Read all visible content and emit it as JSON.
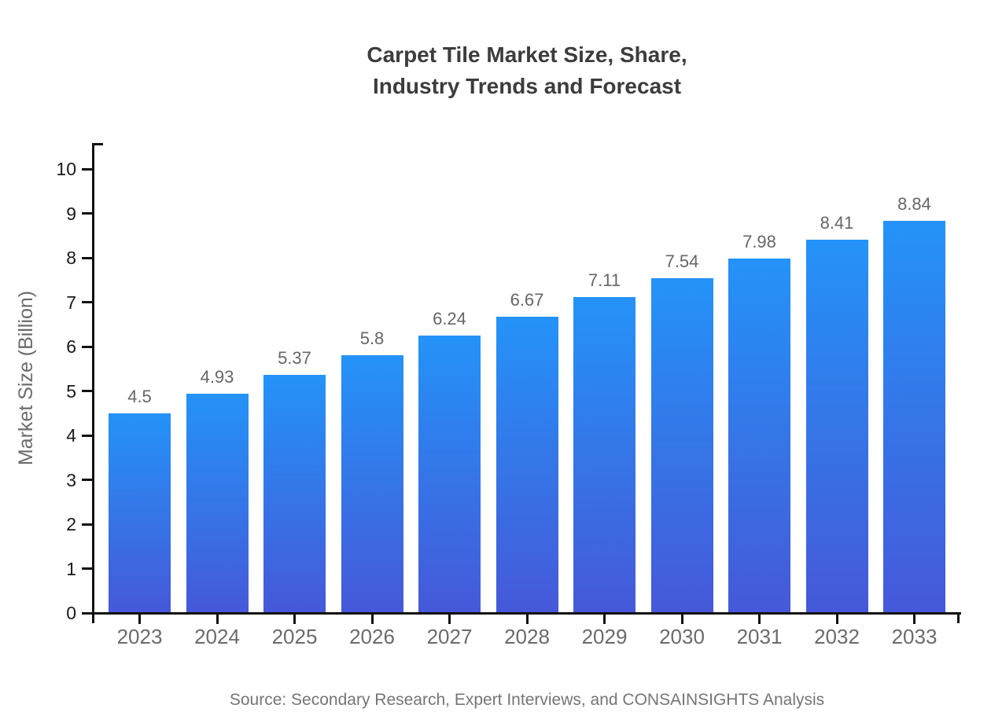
{
  "chart_data": {
    "type": "bar",
    "title": "Carpet Tile Market Size, Share, Industry Trends and Forecast",
    "title_lines": [
      "Carpet Tile Market Size, Share,",
      "Industry Trends and Forecast"
    ],
    "categories": [
      "2023",
      "2024",
      "2025",
      "2026",
      "2027",
      "2028",
      "2029",
      "2030",
      "2031",
      "2032",
      "2033"
    ],
    "values": [
      4.5,
      4.93,
      5.37,
      5.8,
      6.24,
      6.67,
      7.11,
      7.54,
      7.98,
      8.41,
      8.84
    ],
    "value_labels": [
      "4.5",
      "4.93",
      "5.37",
      "5.8",
      "6.24",
      "6.67",
      "7.11",
      "7.54",
      "7.98",
      "8.41",
      "8.84"
    ],
    "xlabel": "",
    "ylabel": "Market Size (Billion)",
    "ylim": [
      0,
      10
    ],
    "ytick_step": 1,
    "grid": false,
    "legend": "none",
    "colors": {
      "bar_gradient_top": "#2493f8",
      "bar_gradient_bottom": "#4658d9",
      "axis": "#111111",
      "y_tick_label": "#1a1a1a",
      "x_tick_label": "#6b6b6b",
      "value_label": "#666666",
      "title": "#3c3c3c",
      "y_axis_title": "#6b6b6b",
      "source": "#757575",
      "background": "#ffffff"
    }
  },
  "footer": {
    "source": "Source: Secondary Research, Expert Interviews, and CONSAINSIGHTS Analysis"
  }
}
